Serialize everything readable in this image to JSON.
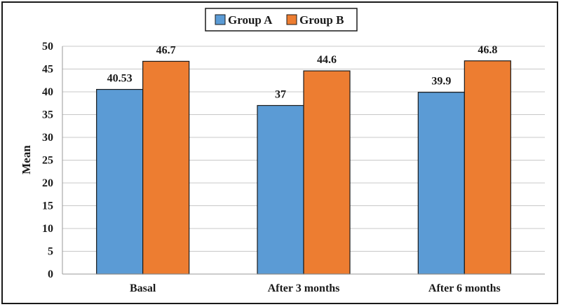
{
  "chart_data": {
    "type": "bar",
    "categories": [
      "Basal",
      "After 3 months",
      "After 6 months"
    ],
    "series": [
      {
        "name": "Group A",
        "values": [
          40.53,
          37,
          39.9
        ],
        "color": "#5b9bd5"
      },
      {
        "name": "Group B",
        "values": [
          46.7,
          44.6,
          46.8
        ],
        "color": "#ed7d31"
      }
    ],
    "data_labels": [
      [
        "40.53",
        "37",
        "39.9"
      ],
      [
        "46.7",
        "44.6",
        "46.8"
      ]
    ],
    "ylabel": "Mean",
    "xlabel": "",
    "ylim": [
      0,
      50
    ],
    "yticks": [
      0,
      5,
      10,
      15,
      20,
      25,
      30,
      35,
      40,
      45,
      50
    ],
    "grid": true,
    "legend_position": "top-center"
  }
}
